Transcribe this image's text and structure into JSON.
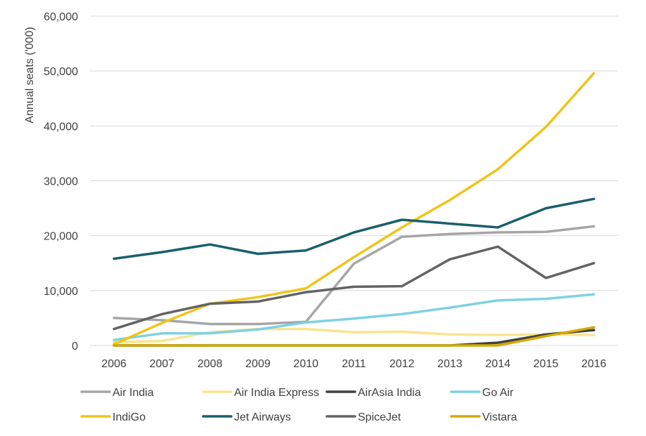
{
  "chart_data": {
    "type": "line",
    "title": "",
    "xlabel": "",
    "ylabel": "Annual seats ('000)",
    "categories": [
      "2006",
      "2007",
      "2008",
      "2009",
      "2010",
      "2011",
      "2012",
      "2013",
      "2014",
      "2015",
      "2016"
    ],
    "ylim": [
      0,
      60000
    ],
    "yticks": [
      0,
      10000,
      20000,
      30000,
      40000,
      50000,
      60000
    ],
    "ytick_labels": [
      "0",
      "10,000",
      "20,000",
      "30,000",
      "40,000",
      "50,000",
      "60,000"
    ],
    "grid": true,
    "legend_position": "bottom",
    "series": [
      {
        "name": "Air India",
        "color": "#a6a6a6",
        "values": [
          5000,
          4600,
          3900,
          3900,
          4300,
          14900,
          19800,
          20300,
          20600,
          20700,
          21700
        ]
      },
      {
        "name": "Air India Express",
        "color": "#fbe38e",
        "values": [
          600,
          800,
          2400,
          3000,
          3000,
          2400,
          2500,
          2000,
          1900,
          2000,
          1900
        ]
      },
      {
        "name": "AirAsia India",
        "color": "#404040",
        "values": [
          0,
          0,
          0,
          0,
          0,
          0,
          0,
          0,
          500,
          2000,
          2800
        ]
      },
      {
        "name": "Go Air",
        "color": "#7fd1e4",
        "values": [
          1000,
          2200,
          2200,
          2900,
          4200,
          4900,
          5700,
          6900,
          8200,
          8500,
          9300
        ]
      },
      {
        "name": "IndiGo",
        "color": "#f0c419",
        "values": [
          200,
          4100,
          7600,
          8800,
          10400,
          16100,
          21500,
          26500,
          32100,
          39800,
          49600
        ]
      },
      {
        "name": "Jet Airways",
        "color": "#1a5f6e",
        "values": [
          15800,
          17000,
          18400,
          16700,
          17300,
          20600,
          22900,
          22200,
          21500,
          25000,
          26700
        ]
      },
      {
        "name": "SpiceJet",
        "color": "#636363",
        "values": [
          3000,
          5700,
          7600,
          8000,
          9700,
          10700,
          10800,
          15700,
          18000,
          12300,
          15000
        ]
      },
      {
        "name": "Vistara",
        "color": "#d4a900",
        "values": [
          0,
          0,
          0,
          0,
          0,
          0,
          0,
          0,
          0,
          1700,
          3300
        ]
      }
    ]
  }
}
